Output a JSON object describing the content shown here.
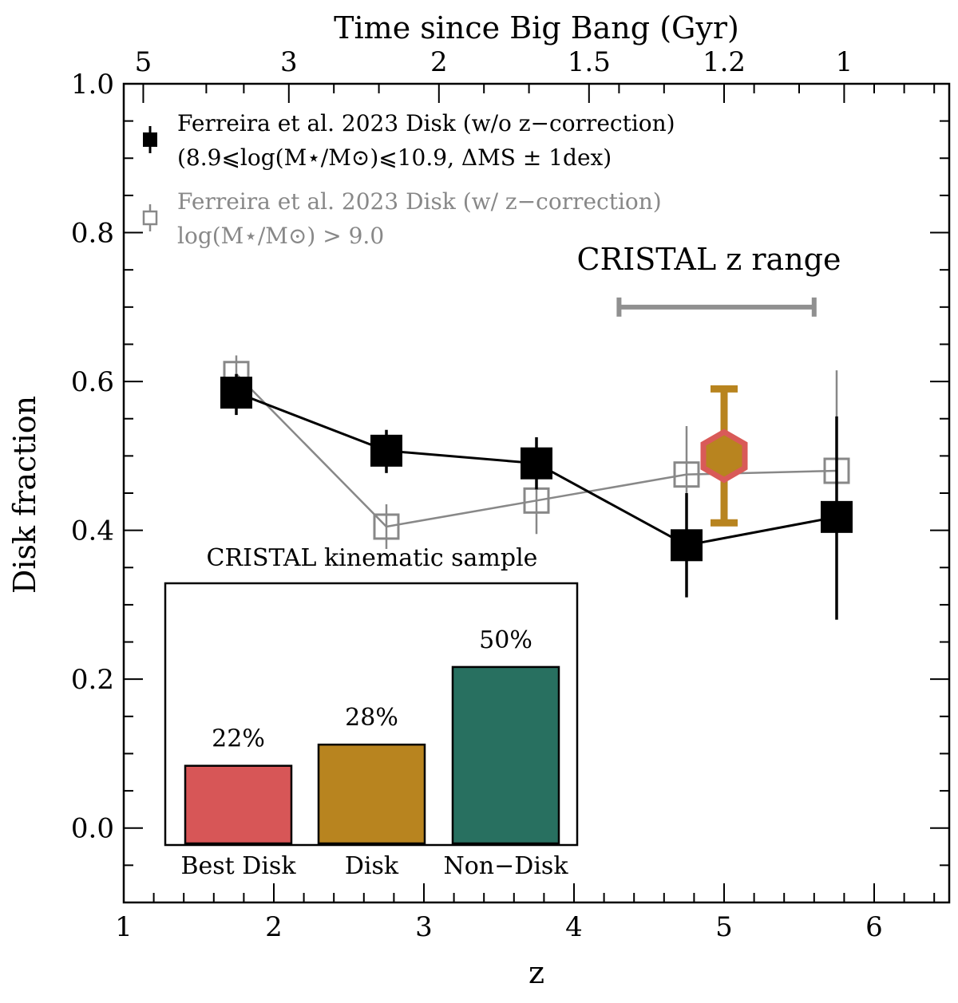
{
  "chart_data": {
    "type": "scatter",
    "xlabel": "z",
    "ylabel": "Disk fraction",
    "xlim": [
      1,
      6.5
    ],
    "ylim": [
      -0.1,
      1.0
    ],
    "x_ticks": [
      "1",
      "2",
      "3",
      "4",
      "5",
      "6"
    ],
    "y_ticks": [
      "0.0",
      "0.2",
      "0.4",
      "0.6",
      "0.8",
      "1.0"
    ],
    "top_axis": {
      "label": "Time since Big Bang (Gyr)",
      "ticks": [
        {
          "label": "5",
          "z": 1.13
        },
        {
          "label": "3",
          "z": 2.1
        },
        {
          "label": "2",
          "z": 3.1
        },
        {
          "label": "1.5",
          "z": 4.1
        },
        {
          "label": "1.2",
          "z": 5.0
        },
        {
          "label": "1",
          "z": 5.8
        }
      ]
    },
    "series": [
      {
        "name": "Ferreira et al. 2023 Disk (w/o z−correction)",
        "name_line2": "(8.9⩽log(M⋆/M⊙)⩽10.9, ΔMS ± 1dex)",
        "color": "#000000",
        "marker": "filled-square",
        "x": [
          1.75,
          2.75,
          3.75,
          4.75,
          5.75
        ],
        "y": [
          0.585,
          0.507,
          0.49,
          0.38,
          0.418
        ],
        "yerr_low": [
          0.03,
          0.03,
          0.035,
          0.07,
          0.138
        ],
        "yerr_high": [
          0.025,
          0.028,
          0.035,
          0.07,
          0.135
        ]
      },
      {
        "name": "Ferreira et al. 2023 Disk (w/ z−correction)",
        "name_line2": "log(M⋆/M⊙) > 9.0",
        "color": "#888888",
        "marker": "open-square",
        "x": [
          1.75,
          2.75,
          3.75,
          4.75,
          5.75
        ],
        "y": [
          0.61,
          0.405,
          0.44,
          0.475,
          0.48
        ],
        "yerr_low": [
          0.03,
          0.03,
          0.045,
          0.065,
          0.09
        ],
        "yerr_high": [
          0.025,
          0.03,
          0.045,
          0.065,
          0.135
        ]
      }
    ],
    "cristal_point": {
      "x": 5.0,
      "y": 0.5,
      "yerr_low": 0.09,
      "yerr_high": 0.09,
      "fill": "#b8841f",
      "edge": "#d95a58"
    },
    "annotation": {
      "text": "CRISTAL z range",
      "x_range": [
        4.3,
        5.6
      ],
      "y": 0.7,
      "color": "#909090"
    },
    "inset": {
      "title": "CRISTAL kinematic sample",
      "categories": [
        "Best Disk",
        "Disk",
        "Non−Disk"
      ],
      "values": [
        22,
        28,
        50
      ],
      "value_labels": [
        "22%",
        "28%",
        "50%"
      ],
      "colors": [
        "#d75657",
        "#b8841f",
        "#287060"
      ]
    }
  }
}
